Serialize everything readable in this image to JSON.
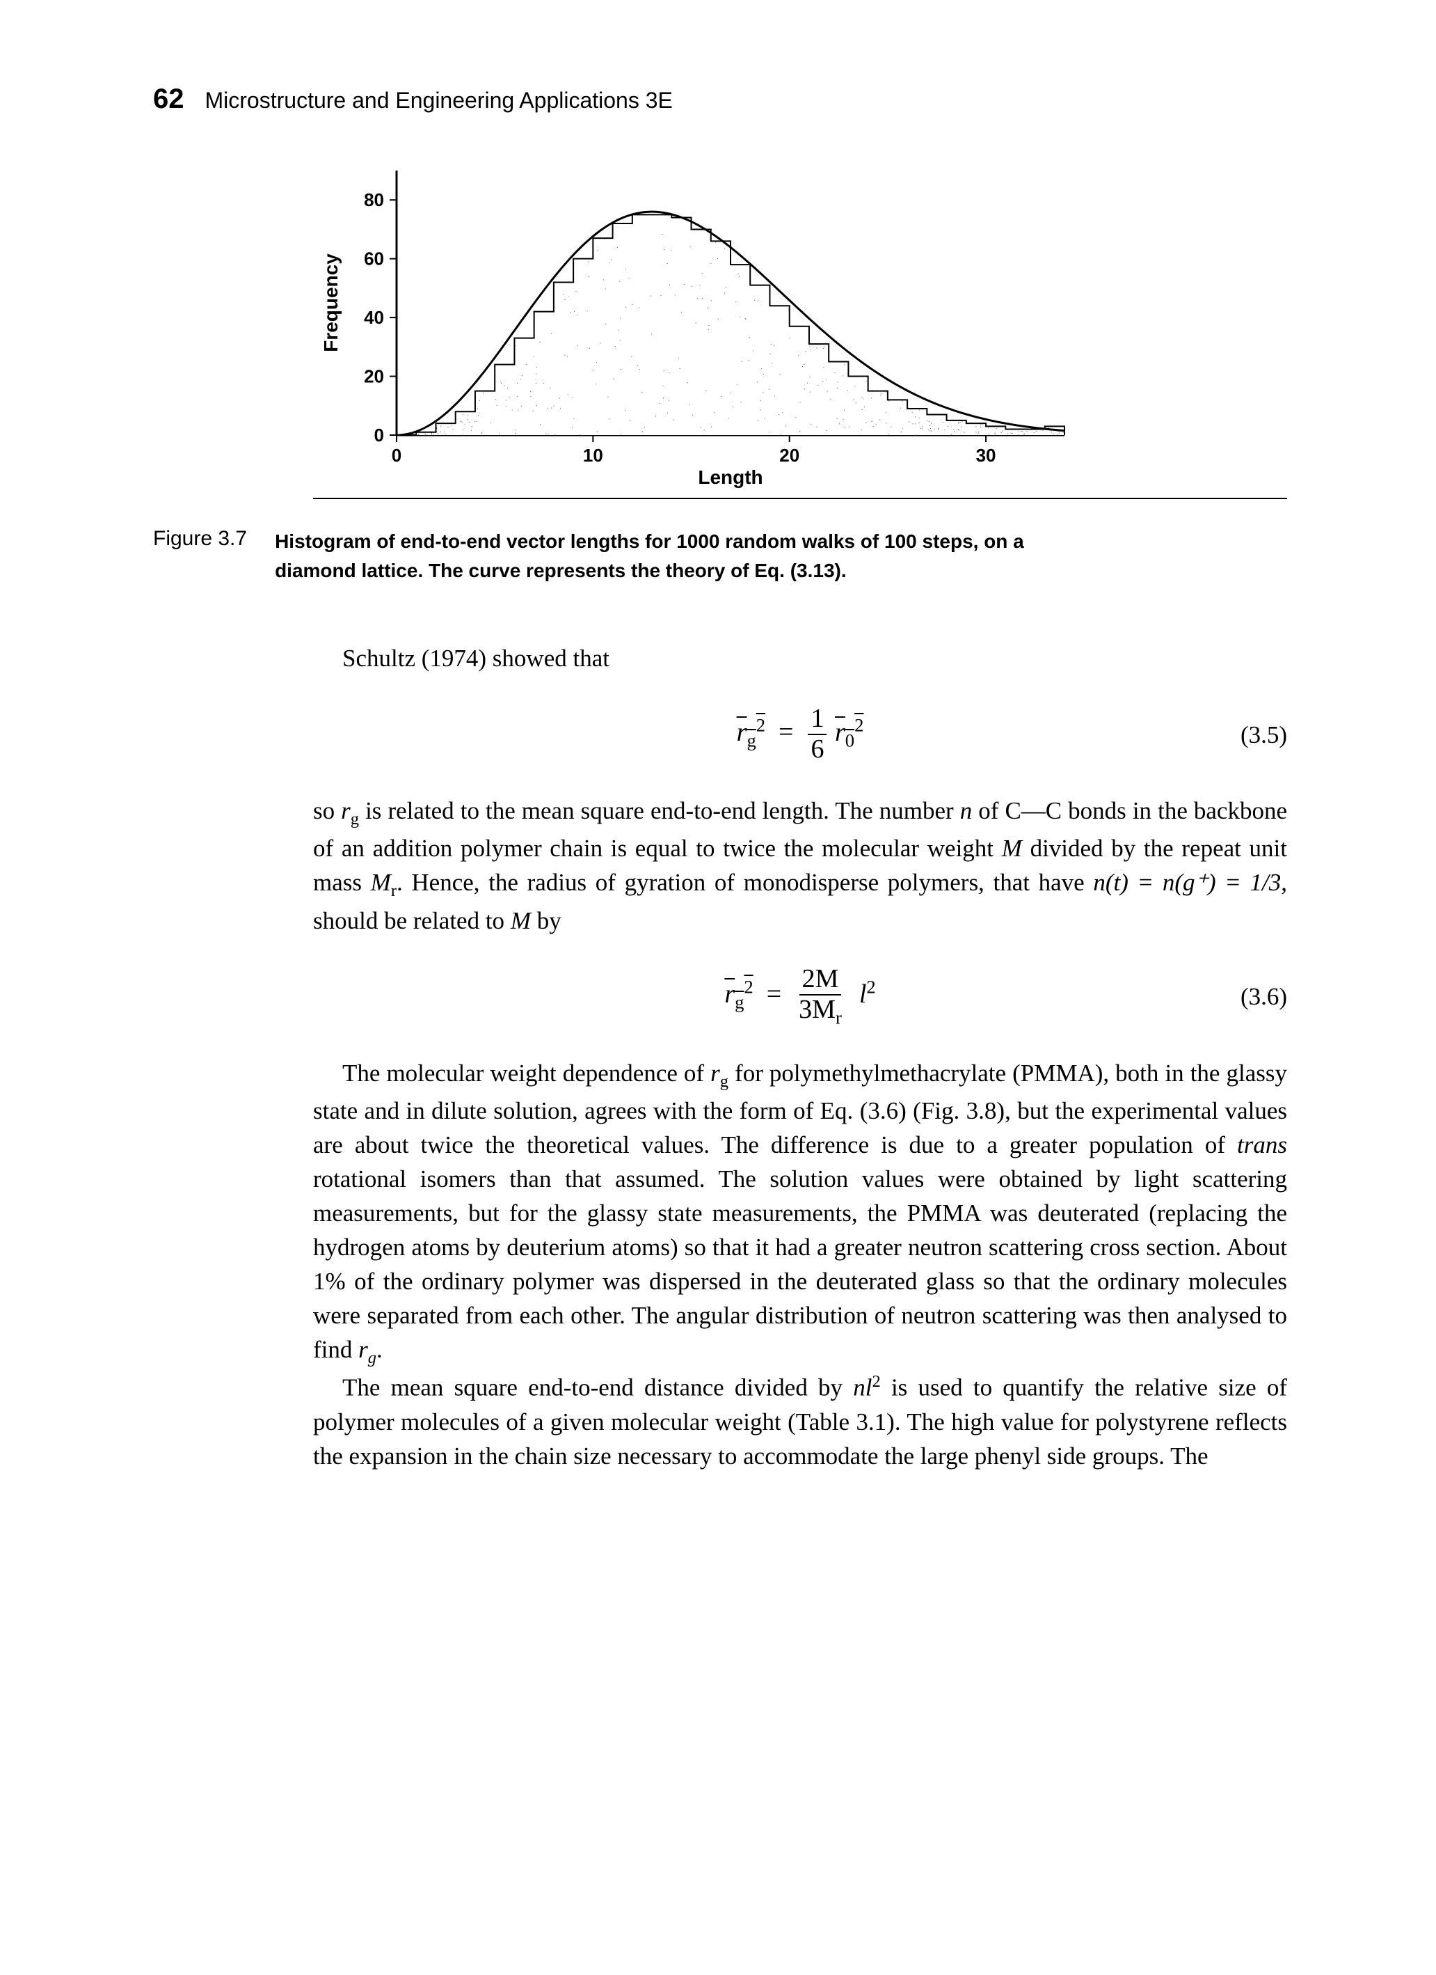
{
  "header": {
    "page_number": "62",
    "title": "Microstructure and Engineering Applications 3E"
  },
  "figure": {
    "label": "Figure 3.7",
    "caption": "Histogram of end-to-end vector lengths for 1000 random walks of 100 steps, on a diamond lattice. The curve represents the theory of Eq. (3.13).",
    "chart": {
      "type": "histogram-with-curve",
      "xlabel": "Length",
      "ylabel": "Frequency",
      "xlim": [
        0,
        34
      ],
      "ylim": [
        0,
        90
      ],
      "xticks": [
        0,
        10,
        20,
        30
      ],
      "yticks": [
        0,
        20,
        40,
        60,
        80
      ],
      "xtick_labels": [
        "0",
        "10",
        "20",
        "30"
      ],
      "ytick_labels": [
        "0",
        "20",
        "40",
        "60",
        "80"
      ],
      "bar_count": 34,
      "bar_values": [
        0,
        1,
        4,
        8,
        15,
        24,
        33,
        42,
        52,
        60,
        67,
        72,
        75,
        75,
        74,
        70,
        66,
        58,
        51,
        44,
        37,
        31,
        25,
        20,
        15,
        12,
        9,
        7,
        5,
        4,
        3,
        2,
        2,
        3
      ],
      "bar_edge_color": "#000000",
      "bar_fill_color": "#ffffff",
      "curve_color": "#000000",
      "curve_width": 3,
      "background_color": "#ffffff",
      "axis_color": "#000000",
      "tick_fontsize": 26,
      "label_fontsize": 28,
      "speckle_color": "#666666"
    }
  },
  "paragraphs": {
    "p1": "Schultz (1974) showed that",
    "p2a": "so ",
    "p2b": " is related to the mean square end-to-end length. The number ",
    "p2c": " of C—C bonds in the backbone of an addition polymer chain is equal to twice the molecular weight ",
    "p2d": " divided by the repeat unit mass ",
    "p2e": " Hence, the radius of gyration of monodisperse polymers, that have ",
    "p2f": ", should be related to ",
    "p2g": " by",
    "p3a": "The molecular weight dependence of ",
    "p3b": " for polymethylmethacrylate (PMMA), both in the glassy state and in dilute solution, agrees with the form of Eq. (3.6) (Fig. 3.8), but the experimental values are about twice the theoretical values. The difference is due to a greater population of ",
    "p3c": " rotational isomers than that assumed. The solution values were obtained by light scattering measurements, but for the glassy state measurements, the PMMA was deuterated (replacing the hydrogen atoms by deuterium atoms) so that it had a greater neutron scattering cross section. About 1% of the ordinary polymer was dispersed in the deuterated glass so that the ordinary molecules were separated from each other. The angular distribution of neutron scattering was then analysed to find ",
    "p3d": ".",
    "p4a": "The mean square end-to-end distance divided by ",
    "p4b": " is used to quantify the relative size of polymer molecules of a given molecular weight (Table 3.1). The high value for polystyrene reflects the expansion in the chain size necessary to accommodate the large phenyl side groups. The"
  },
  "equations": {
    "eq1_num": "(3.5)",
    "eq2_num": "(3.6)"
  },
  "symbols": {
    "rg": "r",
    "rg_sub": "g",
    "r0": "r",
    "r0_sub": "0",
    "n": "n",
    "M": "M",
    "Mr": "M",
    "Mr_sub": "r",
    "nt": "n(t) = n(g⁺) = 1/3",
    "nl2_a": "nl",
    "nl2_b": "2",
    "trans": "trans",
    "l2": "l",
    "sq": "2",
    "twoM": "2M",
    "threeMr": "3M",
    "one": "1",
    "six": "6"
  }
}
